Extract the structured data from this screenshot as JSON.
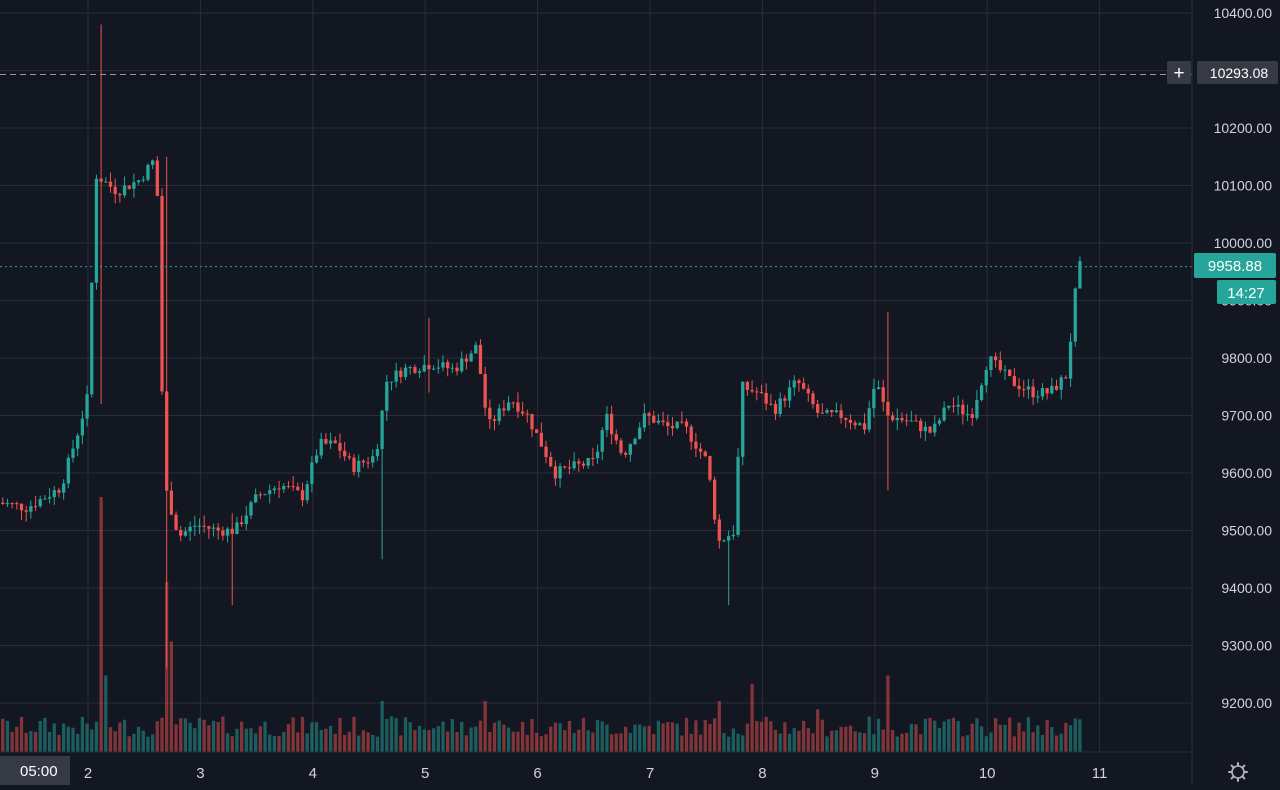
{
  "chart_data": {
    "type": "candlestick",
    "x_axis": {
      "cursor_label": "05:00",
      "tick_labels": [
        "2",
        "3",
        "4",
        "5",
        "6",
        "7",
        "8",
        "9",
        "10",
        "11"
      ],
      "day_values": [
        2,
        3,
        4,
        5,
        6,
        7,
        8,
        9,
        10,
        11
      ],
      "range_days": [
        1.2,
        11.0
      ]
    },
    "y_axis": {
      "tick_labels": [
        "10400.00",
        "10300.00",
        "10200.00",
        "10100.00",
        "10000.00",
        "9900.00",
        "9800.00",
        "9700.00",
        "9600.00",
        "9500.00",
        "9400.00",
        "9300.00",
        "9200.00"
      ],
      "tick_values": [
        10400,
        10300,
        10200,
        10100,
        10000,
        9900,
        9800,
        9700,
        9600,
        9500,
        9400,
        9300,
        9200
      ],
      "range": [
        9115,
        10430
      ]
    },
    "crosshair": {
      "price_label": "10293.08",
      "price": 10293.08,
      "plus_symbol": "+"
    },
    "last_price": {
      "label": "9958.88",
      "value": 9958.88,
      "countdown": "14:27"
    },
    "colors": {
      "background": "#131722",
      "grid": "#2a2e39",
      "up": "#26a69a",
      "down": "#ef5350",
      "axis_text": "#d1d4dc",
      "crosshair_badge": "#363a45",
      "last_price_badge": "#26a69a"
    },
    "icons": {
      "settings": "gear-icon"
    },
    "price_path": [
      [
        1.2,
        9550
      ],
      [
        1.5,
        9540
      ],
      [
        1.8,
        9575
      ],
      [
        1.95,
        9670
      ],
      [
        2.05,
        9740
      ],
      [
        2.1,
        10120
      ],
      [
        2.3,
        10090
      ],
      [
        2.5,
        10110
      ],
      [
        2.65,
        10150
      ],
      [
        2.72,
        9580
      ],
      [
        2.85,
        9490
      ],
      [
        3.0,
        9510
      ],
      [
        3.2,
        9500
      ],
      [
        3.35,
        9500
      ],
      [
        3.55,
        9560
      ],
      [
        3.75,
        9580
      ],
      [
        3.95,
        9560
      ],
      [
        4.1,
        9650
      ],
      [
        4.25,
        9650
      ],
      [
        4.4,
        9610
      ],
      [
        4.6,
        9630
      ],
      [
        4.7,
        9760
      ],
      [
        4.85,
        9780
      ],
      [
        5.1,
        9790
      ],
      [
        5.3,
        9780
      ],
      [
        5.5,
        9820
      ],
      [
        5.6,
        9680
      ],
      [
        5.8,
        9730
      ],
      [
        5.95,
        9700
      ],
      [
        6.1,
        9640
      ],
      [
        6.2,
        9600
      ],
      [
        6.35,
        9610
      ],
      [
        6.55,
        9620
      ],
      [
        6.65,
        9700
      ],
      [
        6.8,
        9630
      ],
      [
        7.0,
        9700
      ],
      [
        7.2,
        9680
      ],
      [
        7.35,
        9680
      ],
      [
        7.55,
        9620
      ],
      [
        7.65,
        9480
      ],
      [
        7.8,
        9500
      ],
      [
        7.85,
        9750
      ],
      [
        8.0,
        9740
      ],
      [
        8.15,
        9710
      ],
      [
        8.35,
        9760
      ],
      [
        8.55,
        9700
      ],
      [
        8.75,
        9700
      ],
      [
        8.95,
        9680
      ],
      [
        9.05,
        9760
      ],
      [
        9.15,
        9700
      ],
      [
        9.35,
        9690
      ],
      [
        9.55,
        9670
      ],
      [
        9.7,
        9720
      ],
      [
        9.9,
        9700
      ],
      [
        10.05,
        9800
      ],
      [
        10.25,
        9760
      ],
      [
        10.45,
        9740
      ],
      [
        10.6,
        9740
      ],
      [
        10.75,
        9770
      ],
      [
        10.85,
        9958.88
      ]
    ],
    "spikes": [
      {
        "day": 2.1,
        "high": 10380,
        "low": 9720
      },
      {
        "day": 2.72,
        "high": 10150,
        "low": 9260
      },
      {
        "day": 3.3,
        "high": 9530,
        "low": 9370
      },
      {
        "day": 4.6,
        "high": 9660,
        "low": 9450
      },
      {
        "day": 5.05,
        "high": 9870,
        "low": 9740
      },
      {
        "day": 7.7,
        "high": 9500,
        "low": 9370
      },
      {
        "day": 9.12,
        "high": 9880,
        "low": 9570
      },
      {
        "day": 10.85,
        "high": 9990,
        "low": 9760
      }
    ],
    "volume": {
      "baseline": 3,
      "spikes": [
        {
          "day": 2.1,
          "value": 30
        },
        {
          "day": 2.15,
          "value": 9
        },
        {
          "day": 2.72,
          "value": 20
        },
        {
          "day": 2.76,
          "value": 13
        },
        {
          "day": 4.6,
          "value": 6
        },
        {
          "day": 5.55,
          "value": 6
        },
        {
          "day": 7.62,
          "value": 6
        },
        {
          "day": 7.9,
          "value": 8
        },
        {
          "day": 8.5,
          "value": 5
        },
        {
          "day": 9.12,
          "value": 9
        },
        {
          "day": 10.85,
          "value": 8
        }
      ]
    }
  }
}
